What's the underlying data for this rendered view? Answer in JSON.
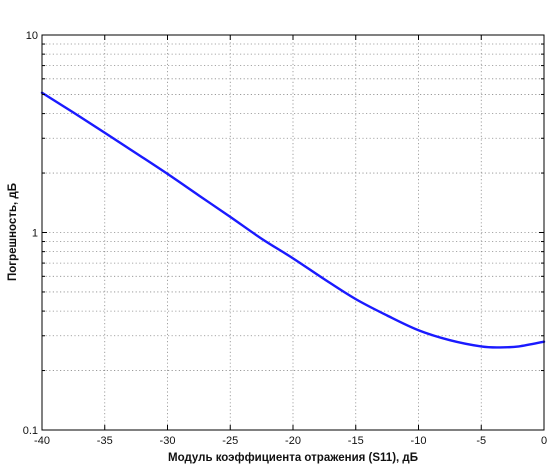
{
  "chart_data": {
    "type": "line",
    "title": "",
    "xlabel": "Модуль коэффициента отражения (S11), дБ",
    "ylabel": "Погрешность, дБ",
    "xlim": [
      -40,
      0
    ],
    "ylim": [
      0.1,
      10
    ],
    "y_scale": "log",
    "x_ticks": [
      -40,
      -35,
      -30,
      -25,
      -20,
      -15,
      -10,
      -5,
      0
    ],
    "x_tick_labels": [
      "-40",
      "-35",
      "-30",
      "-25",
      "-20",
      "-15",
      "-10",
      "-5",
      "0"
    ],
    "y_ticks": [
      0.1,
      1,
      10
    ],
    "y_tick_labels": [
      "0.1",
      "1",
      "10"
    ],
    "grid": true,
    "grid_style": "dotted",
    "legend": "none",
    "colors": {
      "series": "#1a1aff",
      "axis": "#000000",
      "grid": "#8c8c8c"
    },
    "series": [
      {
        "x": [
          -40,
          -37.5,
          -35,
          -32.5,
          -30,
          -27.5,
          -25,
          -22.5,
          -20,
          -17.5,
          -15,
          -12.5,
          -10,
          -7.5,
          -5,
          -3.5,
          -2,
          0
        ],
        "y": [
          5.1,
          4.05,
          3.2,
          2.52,
          1.98,
          1.54,
          1.2,
          0.93,
          0.74,
          0.58,
          0.46,
          0.38,
          0.32,
          0.285,
          0.265,
          0.262,
          0.265,
          0.28
        ]
      }
    ]
  }
}
